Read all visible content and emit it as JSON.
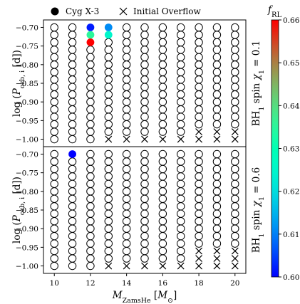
{
  "chart_data": {
    "type": "scatter",
    "legend": {
      "placement": "top",
      "entries": [
        {
          "marker": "filled-circle",
          "label": "Cyg X-3"
        },
        {
          "marker": "cross",
          "label": "Initial Overflow"
        }
      ]
    },
    "xlabel": {
      "base": "M",
      "sub": "ZamsHe",
      "unit_open": " [",
      "unit_base": "M",
      "unit_sub": "⊙",
      "unit_close": "]"
    },
    "ylabel": {
      "prefix": "log (",
      "base": "P",
      "sub": "orb, i",
      "suffix": " [d])"
    },
    "x_ticks": [
      10,
      12,
      14,
      16,
      18,
      20
    ],
    "y_ticks": [
      "-0.70",
      "-0.75",
      "-0.80",
      "-0.85",
      "-0.90",
      "-0.95",
      "-1.00"
    ],
    "x_grid": [
      10,
      11,
      12,
      13,
      14,
      15,
      16,
      17,
      18,
      19,
      20
    ],
    "y_grid": [
      -0.7,
      -0.72,
      -0.74,
      -0.76,
      -0.78,
      -0.8,
      -0.82,
      -0.84,
      -0.86,
      -0.88,
      -0.9,
      -0.92,
      -0.94,
      -0.96,
      -0.98,
      -1.0
    ],
    "xlim": [
      9.4,
      20.6
    ],
    "ylim": [
      -1.02,
      -0.68
    ],
    "colorbar": {
      "label_base": "f",
      "label_sub": "RL",
      "range": [
        0.6,
        0.66
      ],
      "ticks": [
        "0.60",
        "0.61",
        "0.62",
        "0.63",
        "0.64",
        "0.65",
        "0.66"
      ],
      "colormap": "rainbow",
      "placement": "right"
    },
    "panels": [
      {
        "label_prefix": "BH",
        "label_sub": "1",
        "label_mid": " spin ",
        "label_chi": "χ",
        "label_chi_sub": "1",
        "label_suffix": " = 0.1",
        "cygx3_points": [
          {
            "x": 12,
            "y": -0.7,
            "f": 0.602
          },
          {
            "x": 13,
            "y": -0.7,
            "f": 0.611
          },
          {
            "x": 12,
            "y": -0.72,
            "f": 0.635
          },
          {
            "x": 13,
            "y": -0.72,
            "f": 0.625
          },
          {
            "x": 12,
            "y": -0.74,
            "f": 0.66
          }
        ],
        "overflow_points": [
          {
            "x": 18,
            "y": -0.98
          },
          {
            "x": 19,
            "y": -0.98
          },
          {
            "x": 20,
            "y": -0.98
          },
          {
            "x": 13,
            "y": -1.0
          },
          {
            "x": 14,
            "y": -1.0
          },
          {
            "x": 15,
            "y": -1.0
          },
          {
            "x": 16,
            "y": -1.0
          },
          {
            "x": 17,
            "y": -1.0
          },
          {
            "x": 18,
            "y": -1.0
          },
          {
            "x": 19,
            "y": -1.0
          },
          {
            "x": 20,
            "y": -1.0
          }
        ]
      },
      {
        "label_prefix": "BH",
        "label_sub": "1",
        "label_mid": " spin ",
        "label_chi": "χ",
        "label_chi_sub": "1",
        "label_suffix": " = 0.6",
        "cygx3_points": [
          {
            "x": 11,
            "y": -0.7,
            "f": 0.6
          }
        ],
        "overflow_points": [
          {
            "x": 18,
            "y": -0.96
          },
          {
            "x": 19,
            "y": -0.96
          },
          {
            "x": 20,
            "y": -0.96
          },
          {
            "x": 18,
            "y": -0.98
          },
          {
            "x": 19,
            "y": -0.98
          },
          {
            "x": 20,
            "y": -0.98
          },
          {
            "x": 13,
            "y": -1.0
          },
          {
            "x": 14,
            "y": -1.0
          },
          {
            "x": 15,
            "y": -1.0
          },
          {
            "x": 16,
            "y": -1.0
          },
          {
            "x": 17,
            "y": -1.0
          },
          {
            "x": 18,
            "y": -1.0
          },
          {
            "x": 19,
            "y": -1.0
          },
          {
            "x": 20,
            "y": -1.0
          }
        ]
      }
    ]
  }
}
